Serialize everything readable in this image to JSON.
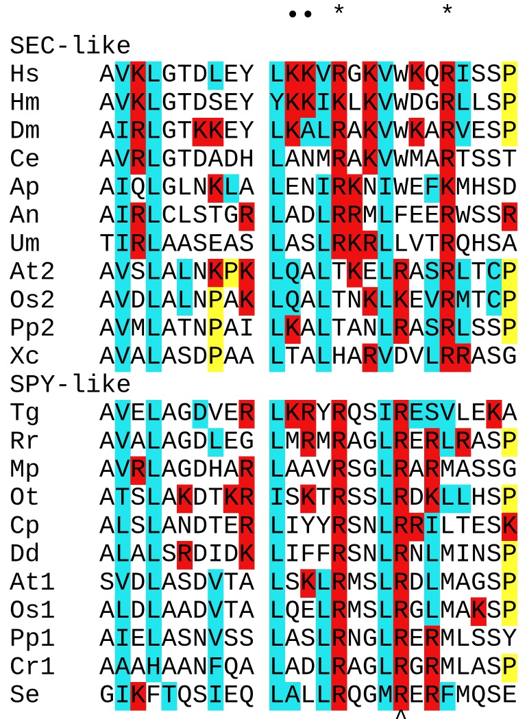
{
  "markers": [
    "••",
    "*",
    "*"
  ],
  "bottom_marker": "^",
  "highlight_colors": {
    "c": "#22e6ee",
    "r": "#ee1111",
    "y": "#ffff33"
  },
  "groups": [
    {
      "title": "SEC-like",
      "rows": [
        {
          "name": "Hs",
          "seq": [
            "AVKLGTDLEY",
            "LKKVRGKVWKQRISSP"
          ],
          "shade": [
            ".crc...c..",
            "crrcr.rc.r.rc..y"
          ]
        },
        {
          "name": "Hm",
          "seq": [
            "AVKLGTDSEY",
            "YKKIKLKVWDGRLLSP"
          ],
          "shade": [
            ".crc......",
            "crrcr.rc...rc..y"
          ]
        },
        {
          "name": "Dm",
          "seq": [
            "AIRLGTKKEY",
            "LKALRAKVWKARVESP"
          ],
          "shade": [
            ".crc..rr..",
            "crccr.rc.r.rc..y"
          ]
        },
        {
          "name": "Ce",
          "seq": [
            "AVRLGTDADH",
            "LANMRAKVWMARTSST"
          ],
          "shade": [
            ".crc......",
            "c...r.rc...r...."
          ]
        },
        {
          "name": "Ap",
          "seq": [
            "AIQLGLNKLA",
            "LENIRKNIWEFKMHSD"
          ],
          "shade": [
            ".c.c...rc.",
            "c..crr.c..cr...."
          ]
        },
        {
          "name": "An",
          "seq": [
            "AIRLCLSTGR",
            "LADLRRMLFEERWSSR"
          ],
          "shade": [
            ".crc.....r",
            "c..crr.c...r...r"
          ]
        },
        {
          "name": "Um",
          "seq": [
            "TIRLAASEAS",
            "LASLRKRLLVTRQHSA"
          ],
          "shade": [
            ".crc......",
            "c..crrrc...r...."
          ]
        },
        {
          "name": "At2",
          "seq": [
            "AVSLALNKPK",
            "LQALTKELRASRLTCP"
          ],
          "shade": [
            ".c.c.c.ryr",
            "cc.c.r.cr.crc.cy"
          ]
        },
        {
          "name": "Os2",
          "seq": [
            "AVDLALNPAK",
            "LQALTNKLKEVRMTCP"
          ],
          "shade": [
            ".c.c.c.y.r",
            "cc.c..rcr.crc.cy"
          ]
        },
        {
          "name": "Pp2",
          "seq": [
            "AVMLATNPAI",
            "LKALTANLRASRLSSP"
          ],
          "shade": [
            ".c.c...y..",
            "cr.c...cr.crc..y"
          ]
        },
        {
          "name": "Xc",
          "seq": [
            "AVALASDPAA",
            "LTALHARVDVLRRASG"
          ],
          "shade": [
            ".c.c...y..",
            "c..c..rc..crr..."
          ]
        }
      ]
    },
    {
      "title": "SPY-like",
      "rows": [
        {
          "name": "Tg",
          "seq": [
            "AVELAGDVER",
            "LKRYRQSIRESVLEKA"
          ],
          "shade": [
            ".c.c..c..r",
            "crr.r..crccc..r."
          ]
        },
        {
          "name": "Rr",
          "seq": [
            "AVALAGDLEG",
            "LMRMRAGLRERLRASP"
          ],
          "shade": [
            ".c.c...c..",
            "c.r.r..cr.rcr..y"
          ]
        },
        {
          "name": "Mp",
          "seq": [
            "AVRLAGDHAR",
            "LAAVRSGLRARMASSG"
          ],
          "shade": [
            ".crc.....r",
            "c...r..cr.r....."
          ]
        },
        {
          "name": "Ot",
          "seq": [
            "ATSLAKDTKR",
            "ISKTRSSLRDKLLHSP"
          ],
          "shade": [
            ".c.c.r..rr",
            "c.r.r..cr.rcc..y"
          ]
        },
        {
          "name": "Cp",
          "seq": [
            "ALSLANDTER",
            "LIYYRSNLRRILTESK"
          ],
          "shade": [
            ".c.c.....r",
            "c...r..crrc....r"
          ]
        },
        {
          "name": "Dd",
          "seq": [
            "ALALSRDIDK",
            "LIFFRSNLRNLMINSP"
          ],
          "shade": [
            ".c.c.r...r",
            "c...r..cr.c....y"
          ]
        },
        {
          "name": "At1",
          "seq": [
            "SVDLASDVTA",
            "LSKLRMSLRDLMAGSP"
          ],
          "shade": [
            ".c.c...c..",
            "c.rcr..cr.c....y"
          ]
        },
        {
          "name": "Os1",
          "seq": [
            "ALDLAADVTA",
            "LQELRMSLRGLMAKSP"
          ],
          "shade": [
            ".c.c...c..",
            "c..cr..cr.c..r.y"
          ]
        },
        {
          "name": "Pp1",
          "seq": [
            "AIELASNVSS",
            "LASLRNGLRERMLSSY"
          ],
          "shade": [
            ".c.c...c..",
            "c..cr..cr.r....."
          ]
        },
        {
          "name": "Cr1",
          "seq": [
            "AAAHAANFQA",
            "LADLRAGLRGRMLASP"
          ],
          "shade": [
            ".c.c...c..",
            "c..cr..cr.r....y"
          ]
        },
        {
          "name": "Se",
          "seq": [
            "GIKFTQSIEQ",
            "LALLRQGMRERFMQSE"
          ],
          "shade": [
            ".cr.c..c..",
            "cc.cr..cr.rc...."
          ]
        }
      ]
    }
  ]
}
